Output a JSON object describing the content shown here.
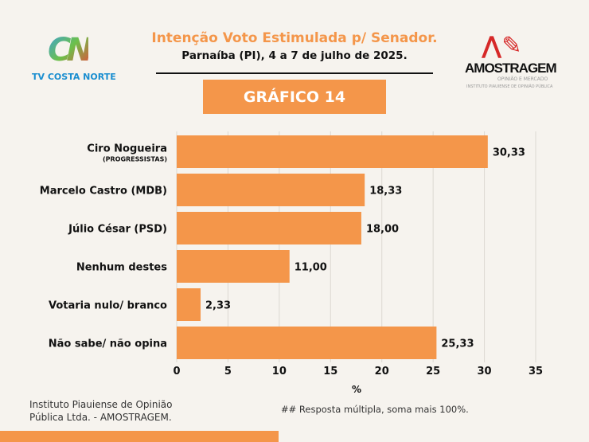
{
  "header": {
    "title": "Intenção Voto Estimulada p/ Senador.",
    "subtitle": "Parnaíba (PI), 4 a 7 de julho de 2025.",
    "badge": "GRÁFICO 14"
  },
  "logos": {
    "left": {
      "mark": "CN",
      "name": "TV COSTA NORTE"
    },
    "right": {
      "name": "AMOSTRAGEM",
      "tagline": "OPINIÃO E MERCADO",
      "institute": "INSTITUTO PIAUIENSE DE OPINIÃO PÚBLICA"
    }
  },
  "chart_data": {
    "type": "bar",
    "orientation": "horizontal",
    "categories": [
      "Ciro Nogueira",
      "Marcelo Castro (MDB)",
      "Júlio César (PSD)",
      "Nenhum destes",
      "Votaria nulo/ branco",
      "Não sabe/ não opina"
    ],
    "category_sublabels": [
      "(PROGRESSISTAS)",
      "",
      "",
      "",
      "",
      ""
    ],
    "values": [
      30.33,
      18.33,
      18.0,
      11.0,
      2.33,
      25.33
    ],
    "value_labels": [
      "30,33",
      "18,33",
      "18,00",
      "11,00",
      "2,33",
      "25,33"
    ],
    "xlabel": "%",
    "xlim": [
      0,
      35
    ],
    "xticks": [
      "0",
      "5",
      "10",
      "15",
      "20",
      "25",
      "30",
      "35"
    ],
    "grid": true,
    "bar_color": "#f4964a"
  },
  "footer": {
    "source_line1": "Instituto Piauiense de Opinião",
    "source_line2": "Pública Ltda. - AMOSTRAGEM.",
    "note": "## Resposta múltipla, soma mais 100%."
  }
}
